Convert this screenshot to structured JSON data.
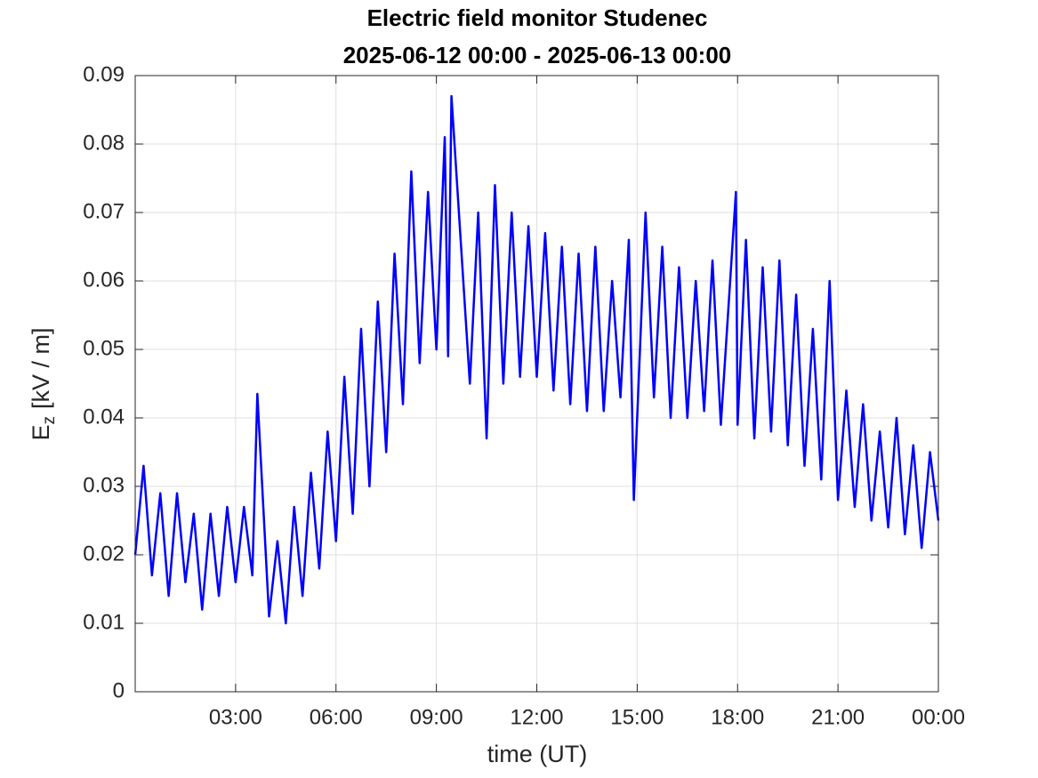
{
  "chart_data": {
    "type": "line",
    "title": "Electric field monitor Studenec",
    "subtitle": "2025-06-12 00:00 - 2025-06-13 00:00",
    "x_label": "time (UT)",
    "y_label": {
      "base": "E",
      "subscript": "z",
      "unit": "[kV / m]"
    },
    "color": "#0000ff",
    "grid": true,
    "xlim": [
      0,
      24
    ],
    "xticks": [
      {
        "value": 3,
        "label": "03:00"
      },
      {
        "value": 6,
        "label": "06:00"
      },
      {
        "value": 9,
        "label": "09:00"
      },
      {
        "value": 12,
        "label": "12:00"
      },
      {
        "value": 15,
        "label": "15:00"
      },
      {
        "value": 18,
        "label": "18:00"
      },
      {
        "value": 21,
        "label": "21:00"
      },
      {
        "value": 24,
        "label": "00:00"
      }
    ],
    "ylim": [
      0,
      0.09
    ],
    "yticks": [
      0,
      0.01,
      0.02,
      0.03,
      0.04,
      0.05,
      0.06,
      0.07,
      0.08,
      0.09
    ],
    "x": [
      0,
      0.25,
      0.5,
      0.75,
      1,
      1.25,
      1.5,
      1.75,
      2,
      2.25,
      2.5,
      2.75,
      3,
      3.25,
      3.5,
      3.65,
      4,
      4.25,
      4.5,
      4.75,
      5,
      5.25,
      5.5,
      5.75,
      6,
      6.25,
      6.5,
      6.75,
      7,
      7.25,
      7.5,
      7.75,
      8,
      8.25,
      8.5,
      8.75,
      9,
      9.25,
      9.35,
      9.45,
      10,
      10.25,
      10.5,
      10.75,
      11,
      11.25,
      11.5,
      11.75,
      12,
      12.25,
      12.5,
      12.75,
      13,
      13.25,
      13.5,
      13.75,
      14,
      14.25,
      14.5,
      14.75,
      14.9,
      15.25,
      15.5,
      15.75,
      16,
      16.25,
      16.5,
      16.75,
      17,
      17.25,
      17.5,
      17.95,
      18,
      18.25,
      18.5,
      18.75,
      19,
      19.25,
      19.5,
      19.75,
      20,
      20.25,
      20.5,
      20.75,
      21,
      21.25,
      21.5,
      21.75,
      22,
      22.25,
      22.5,
      22.75,
      23,
      23.25,
      23.5,
      23.75,
      24
    ],
    "values": [
      0.02,
      0.033,
      0.017,
      0.029,
      0.014,
      0.029,
      0.016,
      0.026,
      0.012,
      0.026,
      0.014,
      0.027,
      0.016,
      0.027,
      0.017,
      0.0435,
      0.011,
      0.022,
      0.01,
      0.027,
      0.014,
      0.032,
      0.018,
      0.038,
      0.022,
      0.046,
      0.026,
      0.053,
      0.03,
      0.057,
      0.035,
      0.064,
      0.042,
      0.076,
      0.048,
      0.073,
      0.05,
      0.081,
      0.049,
      0.087,
      0.045,
      0.07,
      0.037,
      0.074,
      0.045,
      0.07,
      0.046,
      0.068,
      0.046,
      0.067,
      0.044,
      0.065,
      0.042,
      0.064,
      0.041,
      0.065,
      0.041,
      0.06,
      0.043,
      0.066,
      0.028,
      0.07,
      0.043,
      0.065,
      0.04,
      0.062,
      0.04,
      0.06,
      0.041,
      0.063,
      0.039,
      0.073,
      0.039,
      0.066,
      0.037,
      0.062,
      0.038,
      0.063,
      0.036,
      0.058,
      0.033,
      0.053,
      0.031,
      0.06,
      0.028,
      0.044,
      0.027,
      0.042,
      0.025,
      0.038,
      0.024,
      0.04,
      0.023,
      0.036,
      0.021,
      0.035,
      0.025
    ]
  }
}
